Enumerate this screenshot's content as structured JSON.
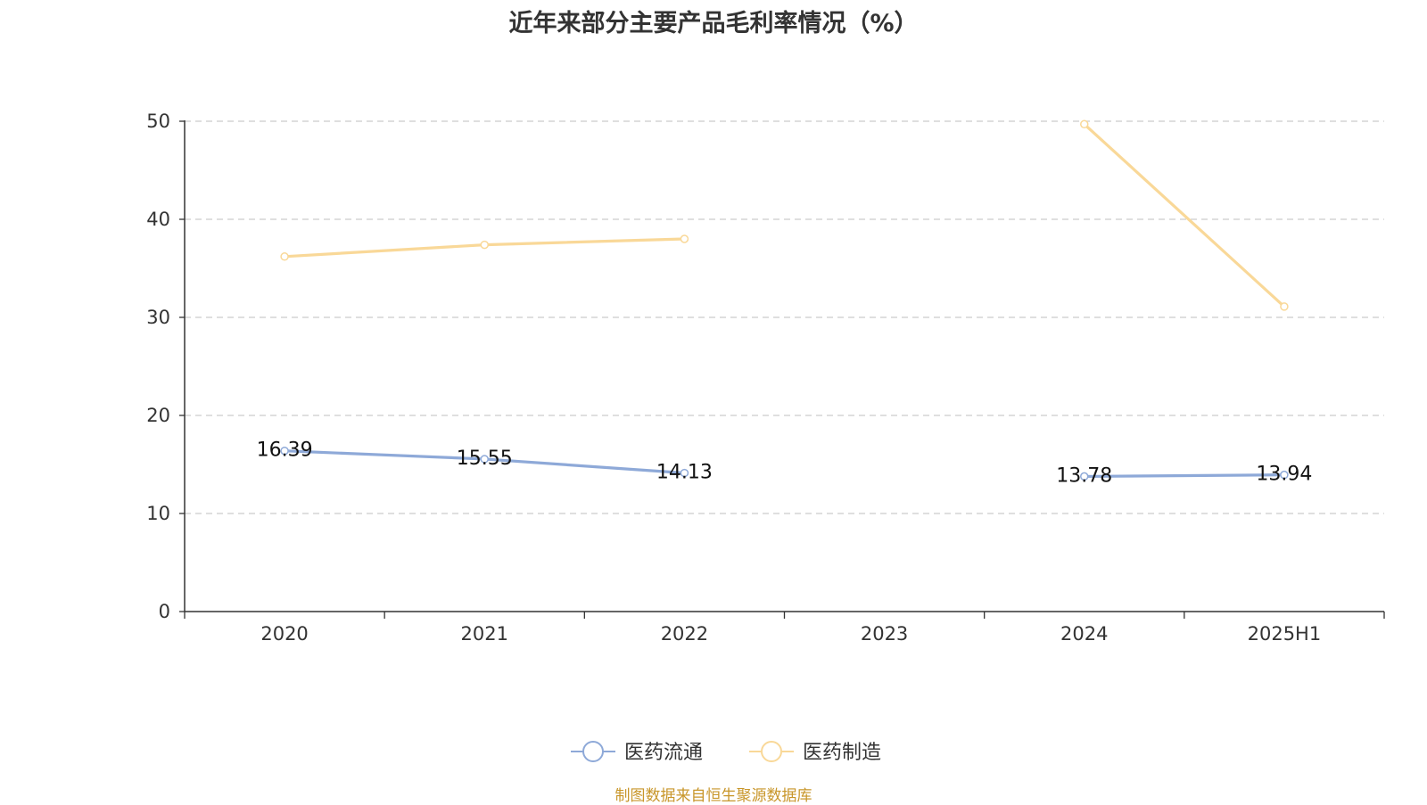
{
  "title": "近年来部分主要产品毛利率情况（%）",
  "source_text": "制图数据来自恒生聚源数据库",
  "colors": {
    "series_1": "#8ea9d8",
    "series_2": "#f9d898",
    "grid": "#cccccc",
    "axis": "#333333",
    "source": "#c8962a"
  },
  "chart_data": {
    "type": "line",
    "title": "近年来部分主要产品毛利率情况（%）",
    "categories": [
      "2020",
      "2021",
      "2022",
      "2023",
      "2024",
      "2025H1"
    ],
    "ylim": [
      0,
      50
    ],
    "yticks": [
      0,
      10,
      20,
      30,
      40,
      50
    ],
    "grid": true,
    "legend_position": "bottom-center",
    "series": [
      {
        "name": "医药流通",
        "values": [
          16.39,
          15.55,
          14.13,
          null,
          13.78,
          13.94
        ],
        "labels": [
          "16.39",
          "15.55",
          "14.13",
          "",
          "13.78",
          "13.94"
        ],
        "show_labels": true
      },
      {
        "name": "医药制造",
        "values": [
          36.2,
          37.4,
          38.0,
          null,
          49.7,
          31.1
        ],
        "show_labels": false
      }
    ]
  }
}
